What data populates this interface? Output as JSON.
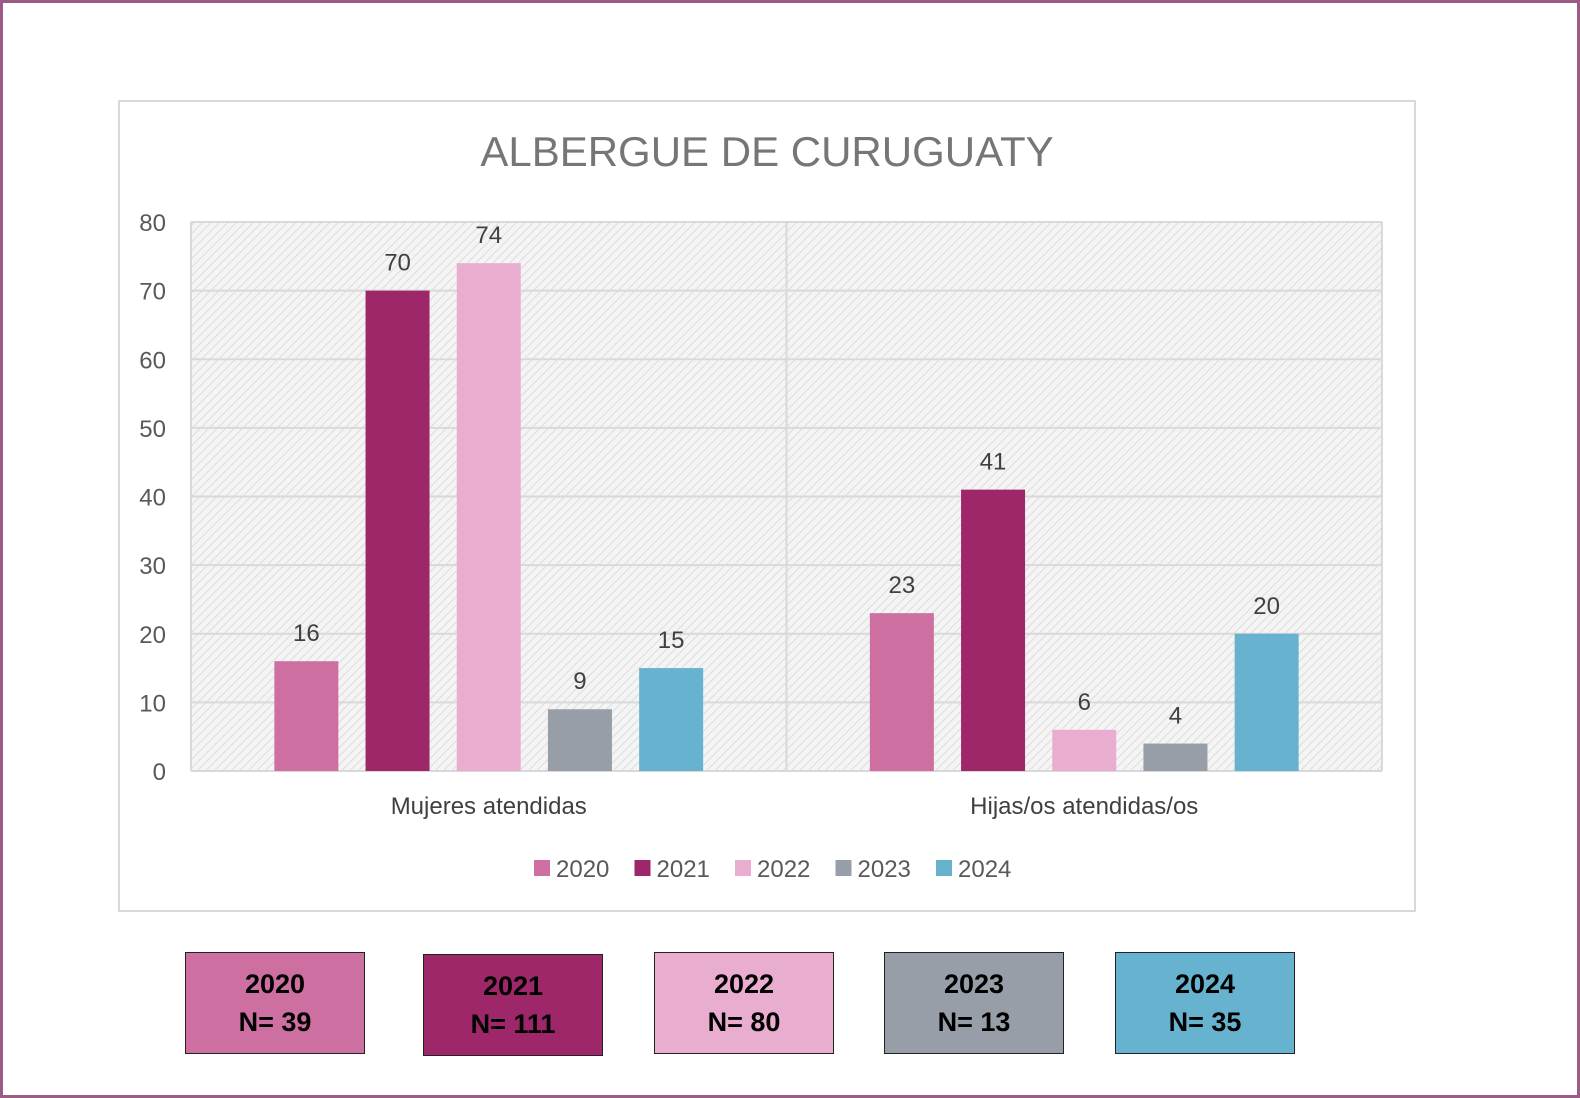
{
  "chart_data": {
    "type": "bar",
    "title": "ALBERGUE DE CURUGUATY",
    "categories": [
      "Mujeres atendidas",
      "Hijas/os atendidas/os"
    ],
    "series": [
      {
        "name": "2020",
        "color": "#cd6fa1",
        "values": [
          16,
          23
        ]
      },
      {
        "name": "2021",
        "color": "#9e276a",
        "values": [
          70,
          41
        ]
      },
      {
        "name": "2022",
        "color": "#e9aecf",
        "values": [
          74,
          6
        ]
      },
      {
        "name": "2023",
        "color": "#979ea8",
        "values": [
          9,
          4
        ]
      },
      {
        "name": "2024",
        "color": "#66b2cf",
        "values": [
          15,
          20
        ]
      }
    ],
    "ylim": [
      0,
      80
    ],
    "yticks": [
      0,
      10,
      20,
      30,
      40,
      50,
      60,
      70,
      80
    ],
    "grid": true,
    "legend": "bottom"
  },
  "totals": [
    {
      "year": "2020",
      "n": "N= 39",
      "color": "#cd6fa1"
    },
    {
      "year": "2021",
      "n": "N= 111",
      "color": "#9e276a"
    },
    {
      "year": "2022",
      "n": "N= 80",
      "color": "#e9aecf"
    },
    {
      "year": "2023",
      "n": "N= 13",
      "color": "#979ea8"
    },
    {
      "year": "2024",
      "n": "N= 35",
      "color": "#66b2cf"
    }
  ]
}
